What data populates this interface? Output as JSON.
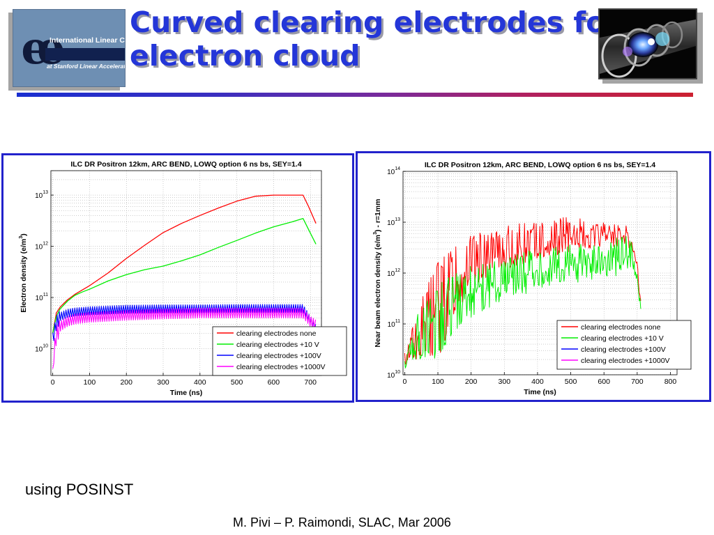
{
  "slide": {
    "title_line1": "Curved clearing electrodes for",
    "title_line2": "electron cloud",
    "logo": {
      "line1": "International Linear Collider",
      "line2": "at Stanford Linear Accelerator Center"
    },
    "photo_icon": "accelerator-cavity-photo",
    "note": "using POSINST",
    "credit": "M. Pivi – P. Raimondi, SLAC, Mar 2006",
    "colors": {
      "title": "#2436d8",
      "panel_border": "#2222cc"
    }
  },
  "chart_data": [
    {
      "type": "line",
      "title": "ILC DR Positron 12km, ARC BEND, LOWQ option 6 ns bs, SEY=1.4",
      "xlabel": "Time (ns)",
      "ylabel": "Electron density (e/m^3)",
      "yscale": "log",
      "xlim": [
        -5,
        730
      ],
      "ylim": [
        3000000000.0,
        30000000000000.0
      ],
      "xticks": [
        0,
        100,
        200,
        300,
        400,
        500,
        600,
        700
      ],
      "yticks": [
        10000000000.0,
        100000000000.0,
        1000000000000.0,
        10000000000000.0
      ],
      "ytick_labels": [
        "10^10",
        "10^11",
        "10^12",
        "10^13"
      ],
      "grid": true,
      "legend_position": "bottom-right",
      "series": [
        {
          "name": "clearing electrodes none",
          "color": "#ff0000",
          "width": 1.3,
          "x": [
            0,
            10,
            20,
            40,
            60,
            80,
            100,
            150,
            200,
            250,
            300,
            350,
            400,
            450,
            500,
            550,
            600,
            650,
            680,
            695,
            715
          ],
          "y": [
            20000000000.0,
            50000000000.0,
            65000000000.0,
            90000000000.0,
            115000000000.0,
            140000000000.0,
            170000000000.0,
            300000000000.0,
            580000000000.0,
            1050000000000.0,
            1850000000000.0,
            2800000000000.0,
            4000000000000.0,
            5600000000000.0,
            7600000000000.0,
            9500000000000.0,
            10000000000000.0,
            10000000000000.0,
            10000000000000.0,
            6000000000000.0,
            2800000000000.0
          ]
        },
        {
          "name": "clearing electrodes +10 V",
          "color": "#00ee00",
          "width": 1.3,
          "x": [
            0,
            10,
            20,
            40,
            60,
            80,
            100,
            150,
            200,
            250,
            300,
            350,
            400,
            450,
            500,
            550,
            600,
            650,
            680,
            700,
            715
          ],
          "y": [
            20000000000.0,
            43000000000.0,
            60000000000.0,
            85000000000.0,
            110000000000.0,
            128000000000.0,
            145000000000.0,
            210000000000.0,
            280000000000.0,
            350000000000.0,
            410000000000.0,
            520000000000.0,
            680000000000.0,
            950000000000.0,
            1300000000000.0,
            1800000000000.0,
            2400000000000.0,
            3000000000000.0,
            3500000000000.0,
            1800000000000.0,
            1100000000000.0
          ]
        },
        {
          "name": "clearing electrodes +100V",
          "color": "#0000ff",
          "width": 1.1,
          "oscillation": 0.18,
          "x": [
            0,
            10,
            20,
            40,
            60,
            100,
            200,
            300,
            400,
            500,
            600,
            680,
            700,
            715
          ],
          "y": [
            16000000000.0,
            34000000000.0,
            43000000000.0,
            50000000000.0,
            53000000000.0,
            56000000000.0,
            60000000000.0,
            61000000000.0,
            61000000000.0,
            62000000000.0,
            62000000000.0,
            62000000000.0,
            36000000000.0,
            25000000000.0
          ]
        },
        {
          "name": "clearing electrodes +1000V",
          "color": "#ff00ff",
          "width": 1.1,
          "oscillation": 0.22,
          "x": [
            0,
            3,
            10,
            20,
            40,
            60,
            100,
            200,
            300,
            400,
            500,
            600,
            680,
            700,
            715
          ],
          "y": [
            3000000000.0,
            8000000000.0,
            20000000000.0,
            28000000000.0,
            35000000000.0,
            39000000000.0,
            42000000000.0,
            46000000000.0,
            49000000000.0,
            51000000000.0,
            51000000000.0,
            51000000000.0,
            51000000000.0,
            35000000000.0,
            30000000000.0
          ]
        }
      ]
    },
    {
      "type": "line",
      "title": "ILC DR Positron 12km, ARC BEND, LOWQ option 6 ns bs, SEY=1.4",
      "xlabel": "Time (ns)",
      "ylabel": "Near beam electron density (e/m^3) - r=1mm",
      "yscale": "log",
      "xlim": [
        -5,
        820
      ],
      "ylim": [
        10000000000.0,
        100000000000000.0
      ],
      "xticks": [
        0,
        100,
        200,
        300,
        400,
        500,
        600,
        700,
        800
      ],
      "yticks": [
        10000000000.0,
        100000000000.0,
        1000000000000.0,
        10000000000000.0,
        100000000000000.0
      ],
      "ytick_labels": [
        "10^10",
        "10^11",
        "10^12",
        "10^13",
        "10^14"
      ],
      "grid": true,
      "legend_position": "bottom-right",
      "series": [
        {
          "name": "clearing electrodes none",
          "color": "#ff0000",
          "width": 1.0,
          "lower": [
            [
              0,
              20000000000.0
            ],
            [
              100,
              20000000000.0
            ],
            [
              150,
              150000000000.0
            ],
            [
              200,
              500000000000.0
            ],
            [
              300,
              1200000000000.0
            ],
            [
              400,
              1800000000000.0
            ],
            [
              500,
              2600000000000.0
            ],
            [
              600,
              3200000000000.0
            ],
            [
              680,
              3500000000000.0
            ],
            [
              700,
              1200000000000.0
            ],
            [
              710,
              250000000000.0
            ]
          ],
          "upper": [
            [
              0,
              20000000000.0
            ],
            [
              40,
              250000000000.0
            ],
            [
              100,
              1600000000000.0
            ],
            [
              150,
              3400000000000.0
            ],
            [
              200,
              5500000000000.0
            ],
            [
              300,
              8500000000000.0
            ],
            [
              400,
              11000000000000.0
            ],
            [
              500,
              13000000000000.0
            ],
            [
              600,
              11000000000000.0
            ],
            [
              680,
              8500000000000.0
            ],
            [
              700,
              1300000000000.0
            ],
            [
              710,
              300000000000.0
            ]
          ],
          "median": [
            [
              0,
              20000000000.0
            ],
            [
              100,
              250000000000.0
            ],
            [
              200,
              1200000000000.0
            ],
            [
              300,
              2200000000000.0
            ],
            [
              400,
              3200000000000.0
            ],
            [
              500,
              4500000000000.0
            ],
            [
              600,
              5000000000000.0
            ],
            [
              680,
              5000000000000.0
            ],
            [
              700,
              1200000000000.0
            ],
            [
              710,
              280000000000.0
            ]
          ]
        },
        {
          "name": "clearing electrodes +10 V",
          "color": "#00ee00",
          "width": 1.0,
          "lower": [
            [
              0,
              20000000000.0
            ],
            [
              100,
              20000000000.0
            ],
            [
              150,
              60000000000.0
            ],
            [
              200,
              130000000000.0
            ],
            [
              300,
              300000000000.0
            ],
            [
              400,
              450000000000.0
            ],
            [
              500,
              600000000000.0
            ],
            [
              600,
              800000000000.0
            ],
            [
              680,
              1000000000000.0
            ],
            [
              700,
              600000000000.0
            ],
            [
              710,
              250000000000.0
            ]
          ],
          "upper": [
            [
              0,
              20000000000.0
            ],
            [
              40,
              180000000000.0
            ],
            [
              100,
              600000000000.0
            ],
            [
              150,
              1000000000000.0
            ],
            [
              200,
              1400000000000.0
            ],
            [
              300,
              2200000000000.0
            ],
            [
              400,
              3000000000000.0
            ],
            [
              500,
              3600000000000.0
            ],
            [
              600,
              4200000000000.0
            ],
            [
              680,
              6000000000000.0
            ],
            [
              700,
              1100000000000.0
            ],
            [
              710,
              280000000000.0
            ]
          ],
          "median": [
            [
              0,
              20000000000.0
            ],
            [
              100,
              200000000000.0
            ],
            [
              200,
              400000000000.0
            ],
            [
              300,
              700000000000.0
            ],
            [
              400,
              950000000000.0
            ],
            [
              500,
              1200000000000.0
            ],
            [
              600,
              1600000000000.0
            ],
            [
              680,
              2000000000000.0
            ],
            [
              700,
              800000000000.0
            ],
            [
              710,
              260000000000.0
            ]
          ]
        },
        {
          "name": "clearing electrodes +100V",
          "color": "#0000ff",
          "width": 1.0
        },
        {
          "name": "clearing electrodes +1000V",
          "color": "#ff00ff",
          "width": 1.0
        }
      ]
    }
  ]
}
